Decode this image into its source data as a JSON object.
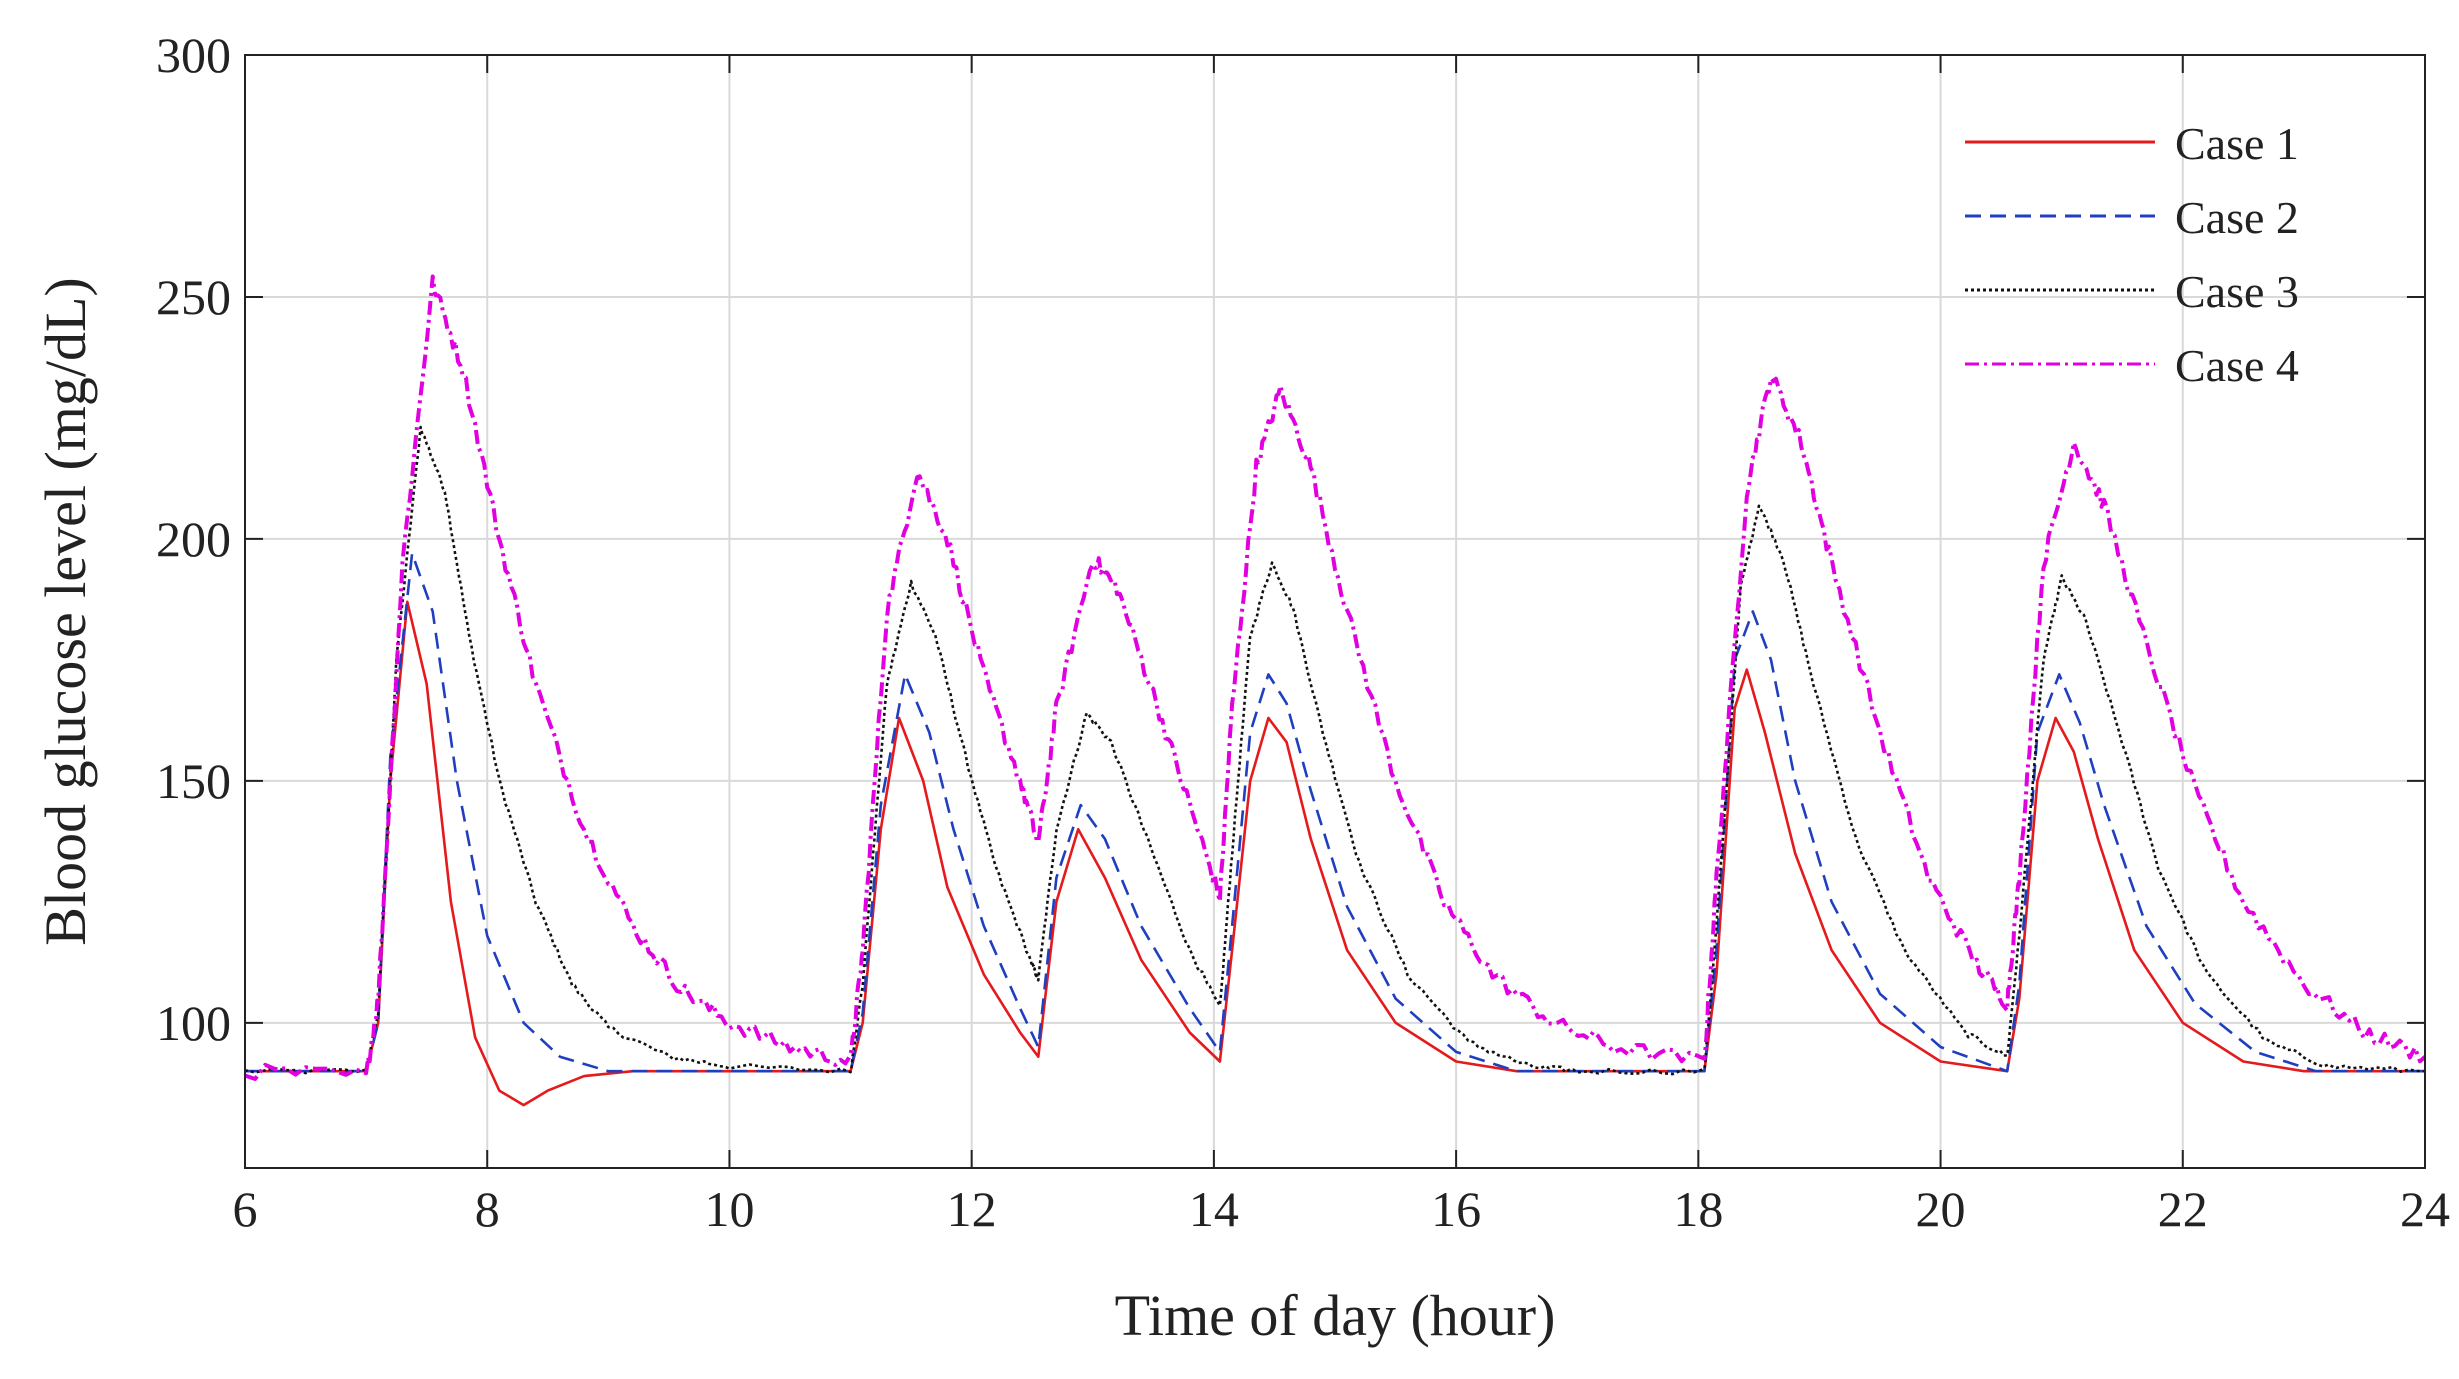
{
  "chart_data": {
    "type": "line",
    "title": "",
    "xlabel": "Time of day (hour)",
    "ylabel": "Blood glucose level (mg/dL)",
    "xlim": [
      6,
      24
    ],
    "ylim": [
      70,
      300
    ],
    "xticks": [
      6,
      8,
      10,
      12,
      14,
      16,
      18,
      20,
      22,
      24
    ],
    "yticks": [
      100,
      150,
      200,
      250,
      300
    ],
    "grid": true,
    "legend_position": "top-right",
    "baseline": 90,
    "series": [
      {
        "name": "Case 1",
        "color": "#e41a1c",
        "dash": "solid",
        "noisy": false,
        "points": [
          [
            6,
            90
          ],
          [
            7.0,
            90
          ],
          [
            7.1,
            100
          ],
          [
            7.2,
            150
          ],
          [
            7.34,
            187
          ],
          [
            7.5,
            170
          ],
          [
            7.7,
            125
          ],
          [
            7.9,
            97
          ],
          [
            8.1,
            86
          ],
          [
            8.3,
            83
          ],
          [
            8.5,
            86
          ],
          [
            8.8,
            89
          ],
          [
            9.2,
            90
          ],
          [
            11.0,
            90
          ],
          [
            11.1,
            100
          ],
          [
            11.25,
            140
          ],
          [
            11.4,
            163
          ],
          [
            11.6,
            150
          ],
          [
            11.8,
            128
          ],
          [
            12.1,
            110
          ],
          [
            12.4,
            98
          ],
          [
            12.55,
            93
          ],
          [
            12.7,
            125
          ],
          [
            12.88,
            140
          ],
          [
            13.1,
            130
          ],
          [
            13.4,
            113
          ],
          [
            13.8,
            98
          ],
          [
            14.05,
            92
          ],
          [
            14.15,
            115
          ],
          [
            14.3,
            150
          ],
          [
            14.45,
            163
          ],
          [
            14.6,
            158
          ],
          [
            14.8,
            138
          ],
          [
            15.1,
            115
          ],
          [
            15.5,
            100
          ],
          [
            16.0,
            92
          ],
          [
            16.5,
            90
          ],
          [
            18.05,
            90
          ],
          [
            18.15,
            110
          ],
          [
            18.3,
            165
          ],
          [
            18.4,
            173
          ],
          [
            18.55,
            160
          ],
          [
            18.8,
            135
          ],
          [
            19.1,
            115
          ],
          [
            19.5,
            100
          ],
          [
            20.0,
            92
          ],
          [
            20.55,
            90
          ],
          [
            20.65,
            105
          ],
          [
            20.8,
            150
          ],
          [
            20.95,
            163
          ],
          [
            21.1,
            156
          ],
          [
            21.3,
            138
          ],
          [
            21.6,
            115
          ],
          [
            22.0,
            100
          ],
          [
            22.5,
            92
          ],
          [
            23.0,
            90
          ],
          [
            24,
            90
          ]
        ]
      },
      {
        "name": "Case 2",
        "color": "#1f3fbf",
        "dash": "dashed",
        "noisy": false,
        "points": [
          [
            6,
            90
          ],
          [
            7.0,
            90
          ],
          [
            7.1,
            100
          ],
          [
            7.2,
            155
          ],
          [
            7.38,
            197
          ],
          [
            7.55,
            185
          ],
          [
            7.75,
            150
          ],
          [
            8.0,
            118
          ],
          [
            8.3,
            100
          ],
          [
            8.6,
            93
          ],
          [
            9.0,
            90
          ],
          [
            11.0,
            90
          ],
          [
            11.1,
            102
          ],
          [
            11.25,
            145
          ],
          [
            11.45,
            172
          ],
          [
            11.65,
            160
          ],
          [
            11.85,
            140
          ],
          [
            12.1,
            120
          ],
          [
            12.4,
            103
          ],
          [
            12.55,
            95
          ],
          [
            12.7,
            130
          ],
          [
            12.9,
            145
          ],
          [
            13.1,
            138
          ],
          [
            13.4,
            120
          ],
          [
            13.8,
            103
          ],
          [
            14.05,
            94
          ],
          [
            14.15,
            120
          ],
          [
            14.3,
            160
          ],
          [
            14.45,
            172
          ],
          [
            14.6,
            166
          ],
          [
            14.8,
            148
          ],
          [
            15.1,
            124
          ],
          [
            15.5,
            105
          ],
          [
            16.0,
            94
          ],
          [
            16.5,
            90
          ],
          [
            18.05,
            90
          ],
          [
            18.15,
            115
          ],
          [
            18.3,
            175
          ],
          [
            18.45,
            185
          ],
          [
            18.6,
            175
          ],
          [
            18.8,
            150
          ],
          [
            19.1,
            125
          ],
          [
            19.5,
            106
          ],
          [
            20.0,
            95
          ],
          [
            20.55,
            90
          ],
          [
            20.65,
            108
          ],
          [
            20.8,
            160
          ],
          [
            20.98,
            172
          ],
          [
            21.15,
            162
          ],
          [
            21.35,
            145
          ],
          [
            21.7,
            120
          ],
          [
            22.1,
            104
          ],
          [
            22.6,
            94
          ],
          [
            23.1,
            90
          ],
          [
            24,
            90
          ]
        ]
      },
      {
        "name": "Case 3",
        "color": "#111111",
        "dash": "dotted",
        "noisy": true,
        "points": [
          [
            6,
            90
          ],
          [
            7.0,
            90
          ],
          [
            7.1,
            102
          ],
          [
            7.25,
            175
          ],
          [
            7.45,
            223
          ],
          [
            7.65,
            210
          ],
          [
            7.85,
            180
          ],
          [
            8.1,
            150
          ],
          [
            8.4,
            125
          ],
          [
            8.7,
            108
          ],
          [
            9.0,
            99
          ],
          [
            9.5,
            93
          ],
          [
            10.0,
            91
          ],
          [
            11.0,
            90
          ],
          [
            11.1,
            108
          ],
          [
            11.3,
            170
          ],
          [
            11.5,
            191
          ],
          [
            11.7,
            180
          ],
          [
            11.95,
            155
          ],
          [
            12.2,
            132
          ],
          [
            12.5,
            112
          ],
          [
            12.55,
            109
          ],
          [
            12.7,
            140
          ],
          [
            12.95,
            164
          ],
          [
            13.15,
            158
          ],
          [
            13.45,
            138
          ],
          [
            13.8,
            115
          ],
          [
            14.05,
            103
          ],
          [
            14.15,
            135
          ],
          [
            14.3,
            180
          ],
          [
            14.48,
            195
          ],
          [
            14.65,
            186
          ],
          [
            14.9,
            160
          ],
          [
            15.2,
            133
          ],
          [
            15.6,
            110
          ],
          [
            16.1,
            96
          ],
          [
            16.6,
            91
          ],
          [
            17.0,
            90
          ],
          [
            18.05,
            90
          ],
          [
            18.15,
            120
          ],
          [
            18.35,
            190
          ],
          [
            18.5,
            207
          ],
          [
            18.7,
            196
          ],
          [
            18.95,
            170
          ],
          [
            19.3,
            138
          ],
          [
            19.7,
            115
          ],
          [
            20.2,
            98
          ],
          [
            20.55,
            93
          ],
          [
            20.65,
            118
          ],
          [
            20.85,
            175
          ],
          [
            21.0,
            192
          ],
          [
            21.2,
            183
          ],
          [
            21.5,
            158
          ],
          [
            21.8,
            132
          ],
          [
            22.2,
            110
          ],
          [
            22.7,
            96
          ],
          [
            23.2,
            91
          ],
          [
            24,
            90
          ]
        ]
      },
      {
        "name": "Case 4",
        "color": "#e000e0",
        "dash": "dashdot",
        "noisy": true,
        "points": [
          [
            6,
            90
          ],
          [
            7.0,
            89
          ],
          [
            7.1,
            105
          ],
          [
            7.3,
            195
          ],
          [
            7.55,
            253
          ],
          [
            7.8,
            235
          ],
          [
            8.1,
            200
          ],
          [
            8.4,
            170
          ],
          [
            8.8,
            140
          ],
          [
            9.2,
            120
          ],
          [
            9.6,
            107
          ],
          [
            10.0,
            100
          ],
          [
            10.5,
            95
          ],
          [
            11.0,
            92
          ],
          [
            11.1,
            115
          ],
          [
            11.3,
            185
          ],
          [
            11.55,
            214
          ],
          [
            11.8,
            200
          ],
          [
            12.1,
            172
          ],
          [
            12.4,
            150
          ],
          [
            12.55,
            137
          ],
          [
            12.7,
            165
          ],
          [
            13.0,
            196
          ],
          [
            13.2,
            190
          ],
          [
            13.5,
            168
          ],
          [
            13.8,
            145
          ],
          [
            14.05,
            126
          ],
          [
            14.15,
            165
          ],
          [
            14.35,
            215
          ],
          [
            14.55,
            231
          ],
          [
            14.8,
            215
          ],
          [
            15.1,
            185
          ],
          [
            15.5,
            150
          ],
          [
            15.9,
            125
          ],
          [
            16.3,
            110
          ],
          [
            16.8,
            100
          ],
          [
            17.3,
            95
          ],
          [
            18.05,
            92
          ],
          [
            18.15,
            130
          ],
          [
            18.4,
            210
          ],
          [
            18.6,
            234
          ],
          [
            18.85,
            220
          ],
          [
            19.1,
            195
          ],
          [
            19.5,
            160
          ],
          [
            19.9,
            130
          ],
          [
            20.3,
            112
          ],
          [
            20.55,
            104
          ],
          [
            20.65,
            130
          ],
          [
            20.85,
            195
          ],
          [
            21.1,
            220
          ],
          [
            21.35,
            207
          ],
          [
            21.7,
            178
          ],
          [
            22.1,
            148
          ],
          [
            22.5,
            125
          ],
          [
            23.0,
            108
          ],
          [
            23.5,
            98
          ],
          [
            24,
            93
          ]
        ]
      }
    ]
  }
}
